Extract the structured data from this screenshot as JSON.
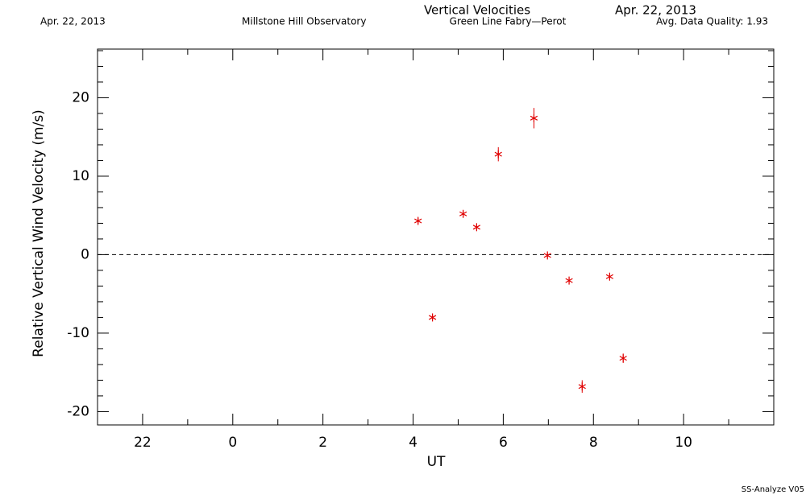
{
  "chart_data": {
    "type": "scatter",
    "title": "Vertical Velocities",
    "subtitle": "Green Line Fabry—Perot",
    "annotations": {
      "date_left": "Apr. 22, 2013",
      "observatory": "Millstone Hill Observatory",
      "date_right": "Apr. 22, 2013",
      "quality": "Avg. Data Quality: 1.93",
      "footer": "SS-Analyze V05"
    },
    "xlabel": "UT",
    "ylabel": "Relative Vertical Wind Velocity (m/s)",
    "x": [
      4.11,
      4.43,
      5.11,
      5.41,
      5.89,
      6.68,
      6.98,
      7.46,
      7.75,
      8.36,
      8.66
    ],
    "values": [
      4.3,
      -8.0,
      5.2,
      3.5,
      12.8,
      17.4,
      -0.1,
      -3.3,
      -16.8,
      -2.8,
      -13.2
    ],
    "errors": [
      0.4,
      0.4,
      0.4,
      0.4,
      0.9,
      1.3,
      0.3,
      0.4,
      0.8,
      0.4,
      0.6
    ],
    "color": "#e00000",
    "xlim": [
      -3,
      12
    ],
    "xticks": [
      {
        "value": -2,
        "label": "22"
      },
      0,
      2,
      4,
      6,
      8,
      10
    ],
    "xticks_minor": [
      -3,
      -1,
      1,
      3,
      5,
      7,
      9,
      11
    ],
    "ylim": [
      -21.7,
      26.2
    ],
    "yticks": [
      -20,
      -10,
      0,
      10,
      20
    ],
    "yticks_minor": [
      -18,
      -16,
      -14,
      -12,
      -8,
      -6,
      -4,
      -2,
      2,
      4,
      6,
      8,
      12,
      14,
      16,
      18,
      22,
      24,
      26,
      -21.7
    ],
    "zero_line": true
  }
}
